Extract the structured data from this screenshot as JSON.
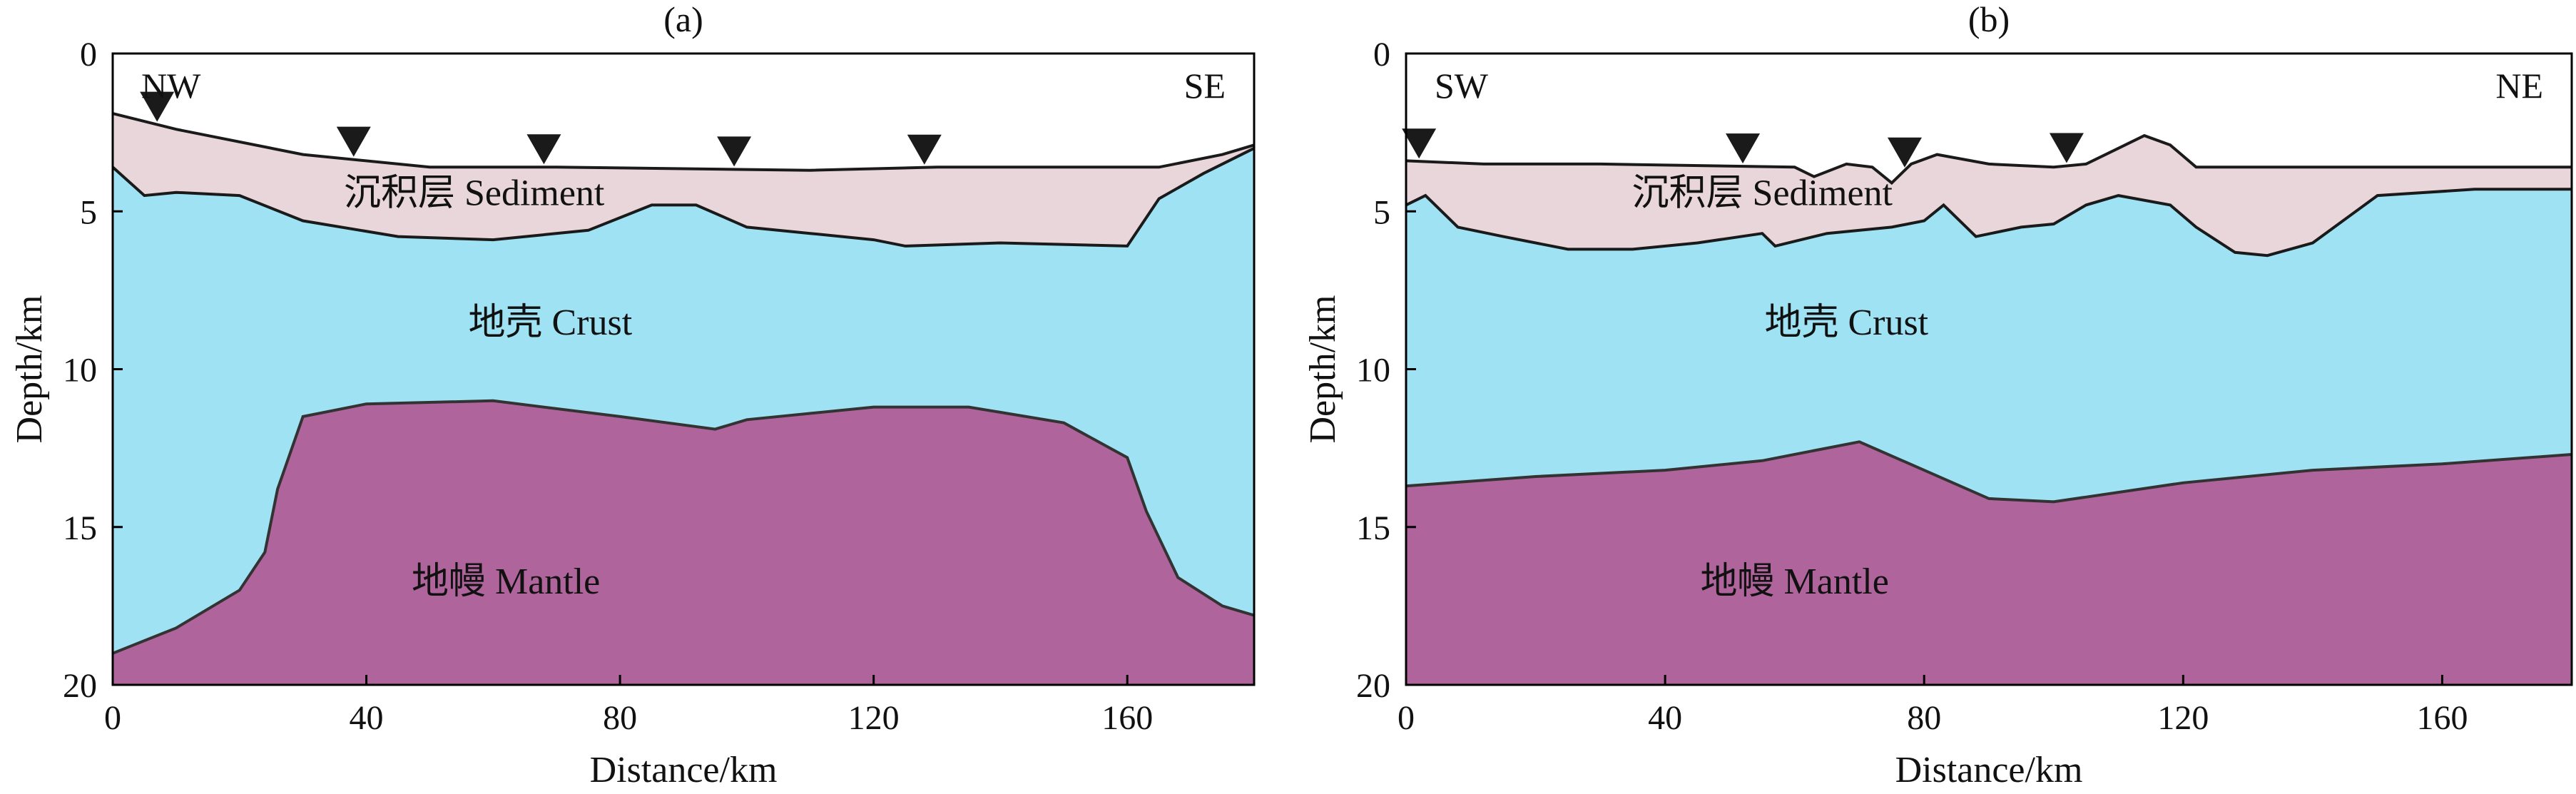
{
  "chart_data": [
    {
      "type": "area",
      "panel_label": "(a)",
      "xlabel": "Distance/km",
      "ylabel": "Depth/km",
      "xlim": [
        0,
        180
      ],
      "ylim": [
        0,
        20
      ],
      "y_inverted": true,
      "x_ticks": [
        0,
        40,
        80,
        120,
        160
      ],
      "y_ticks": [
        0,
        5,
        10,
        15,
        20
      ],
      "direction_left": "NW",
      "direction_right": "SE",
      "layer_labels": {
        "sediment": "沉积层 Sediment",
        "crust": "地壳 Crust",
        "mantle": "地幔 Mantle"
      },
      "stations_km": [
        7,
        38,
        68,
        98,
        128
      ],
      "seafloor": {
        "x": [
          0,
          10,
          30,
          50,
          70,
          90,
          110,
          130,
          150,
          165,
          175,
          180
        ],
        "y": [
          1.9,
          2.4,
          3.2,
          3.6,
          3.6,
          3.65,
          3.7,
          3.6,
          3.6,
          3.6,
          3.2,
          2.9
        ]
      },
      "basement": {
        "x": [
          0,
          5,
          10,
          20,
          30,
          45,
          60,
          75,
          85,
          92,
          100,
          110,
          120,
          125,
          140,
          160,
          165,
          172,
          180
        ],
        "y": [
          3.6,
          4.5,
          4.4,
          4.5,
          5.3,
          5.8,
          5.9,
          5.6,
          4.8,
          4.8,
          5.5,
          5.7,
          5.9,
          6.1,
          6.0,
          6.1,
          4.6,
          3.8,
          3.0
        ]
      },
      "moho": {
        "x": [
          0,
          10,
          20,
          24,
          26,
          30,
          40,
          60,
          80,
          95,
          100,
          120,
          135,
          150,
          160,
          163,
          168,
          175,
          180
        ],
        "y": [
          19.0,
          18.2,
          17.0,
          15.8,
          13.8,
          11.5,
          11.1,
          11.0,
          11.5,
          11.9,
          11.6,
          11.2,
          11.2,
          11.7,
          12.8,
          14.5,
          16.6,
          17.5,
          17.8
        ]
      }
    },
    {
      "type": "area",
      "panel_label": "(b)",
      "xlabel": "Distance/km",
      "ylabel": "Depth/km",
      "xlim": [
        0,
        180
      ],
      "ylim": [
        0,
        20
      ],
      "y_inverted": true,
      "x_ticks": [
        0,
        40,
        80,
        120,
        160
      ],
      "y_ticks": [
        0,
        5,
        10,
        15,
        20
      ],
      "direction_left": "SW",
      "direction_right": "NE",
      "layer_labels": {
        "sediment": "沉积层 Sediment",
        "crust": "地壳 Crust",
        "mantle": "地幔 Mantle"
      },
      "stations_km": [
        2,
        52,
        77,
        102
      ],
      "seafloor": {
        "x": [
          0,
          12,
          30,
          60,
          63,
          68,
          72,
          75,
          78,
          82,
          90,
          100,
          105,
          110,
          114,
          118,
          122,
          140,
          180
        ],
        "y": [
          3.4,
          3.5,
          3.5,
          3.6,
          3.9,
          3.5,
          3.6,
          4.1,
          3.5,
          3.2,
          3.5,
          3.6,
          3.5,
          3.0,
          2.6,
          2.9,
          3.6,
          3.6,
          3.6
        ]
      },
      "basement": {
        "x": [
          0,
          3,
          8,
          15,
          25,
          35,
          45,
          55,
          57,
          65,
          75,
          80,
          83,
          88,
          95,
          100,
          105,
          110,
          118,
          122,
          128,
          133,
          140,
          150,
          165,
          180
        ],
        "y": [
          4.8,
          4.5,
          5.5,
          5.8,
          6.2,
          6.2,
          6.0,
          5.7,
          6.1,
          5.7,
          5.5,
          5.3,
          4.8,
          5.8,
          5.5,
          5.4,
          4.8,
          4.5,
          4.8,
          5.5,
          6.3,
          6.4,
          6.0,
          4.5,
          4.3,
          4.3
        ]
      },
      "moho": {
        "x": [
          0,
          20,
          40,
          55,
          65,
          70,
          80,
          90,
          100,
          120,
          140,
          160,
          180
        ],
        "y": [
          13.7,
          13.4,
          13.2,
          12.9,
          12.5,
          12.3,
          13.2,
          14.1,
          14.2,
          13.6,
          13.2,
          13.0,
          12.7
        ]
      }
    }
  ],
  "colors": {
    "sediment": "#e8d6da",
    "crust": "#9fe2f4",
    "mantle": "#b0649c",
    "line": "#1a1a1a",
    "station": "#1a1a1a"
  }
}
